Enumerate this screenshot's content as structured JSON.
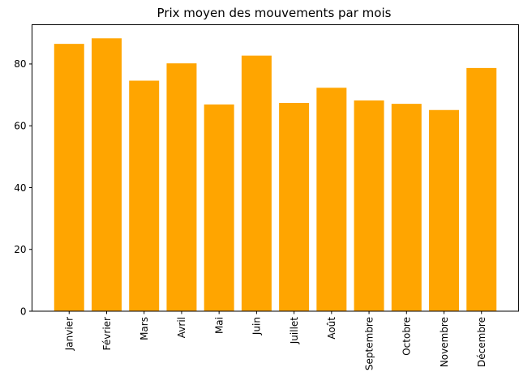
{
  "chart_data": {
    "type": "bar",
    "title": "Prix moyen des mouvements par mois",
    "xlabel": "",
    "ylabel": "",
    "categories": [
      "Janvier",
      "Février",
      "Mars",
      "Avril",
      "Mai",
      "Juin",
      "Juillet",
      "Août",
      "Septembre",
      "Octobre",
      "Novembre",
      "Décembre"
    ],
    "values": [
      86.5,
      88.3,
      74.6,
      80.2,
      66.9,
      82.7,
      67.4,
      72.3,
      68.2,
      67.1,
      65.1,
      78.7
    ],
    "ylim": [
      0,
      92.7
    ],
    "yticks": [
      0,
      20,
      40,
      60,
      80
    ],
    "grid": false,
    "legend": "none",
    "bar_color": "#ffa500"
  }
}
